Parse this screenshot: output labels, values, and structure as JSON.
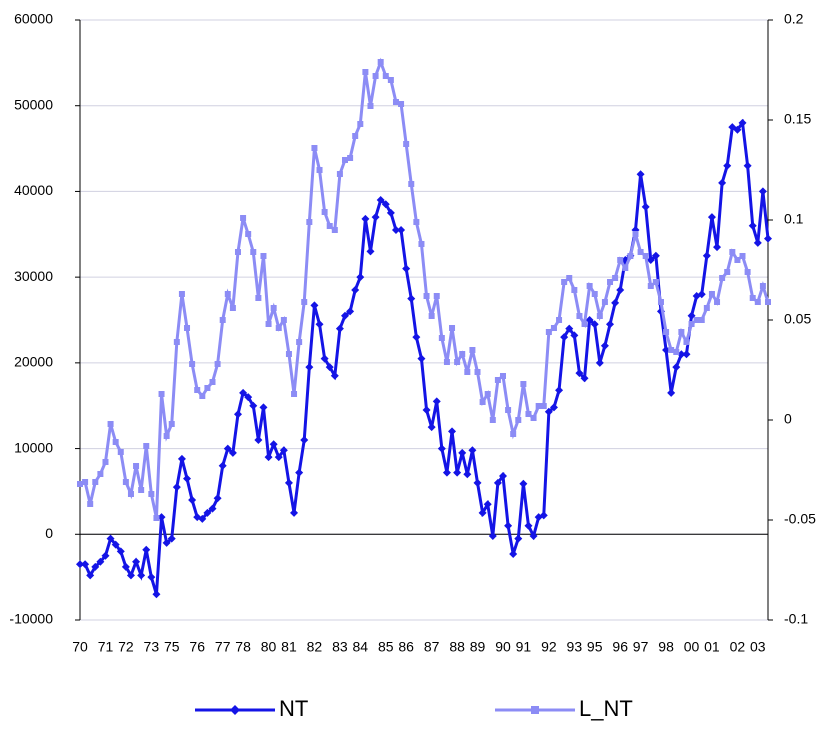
{
  "chart_data": {
    "type": "line",
    "categories": [
      "70",
      null,
      null,
      null,
      null,
      "71",
      null,
      null,
      null,
      "72",
      null,
      null,
      null,
      null,
      "73",
      null,
      null,
      null,
      "75",
      null,
      null,
      null,
      null,
      "76",
      null,
      null,
      null,
      null,
      "77",
      null,
      null,
      null,
      "78",
      null,
      null,
      null,
      null,
      "80",
      null,
      null,
      null,
      "81",
      null,
      null,
      null,
      null,
      "82",
      null,
      null,
      null,
      null,
      "83",
      null,
      null,
      null,
      "84",
      null,
      null,
      null,
      null,
      "85",
      null,
      null,
      null,
      "86",
      null,
      null,
      null,
      null,
      "87",
      null,
      null,
      null,
      null,
      "88",
      null,
      null,
      null,
      "89",
      null,
      null,
      null,
      null,
      "90",
      null,
      null,
      null,
      "91",
      null,
      null,
      null,
      null,
      "92",
      null,
      null,
      null,
      null,
      "93",
      null,
      null,
      null,
      "95",
      null,
      null,
      null,
      null,
      "96",
      null,
      null,
      null,
      "97",
      null,
      null,
      null,
      null,
      "98",
      null,
      null,
      null,
      null,
      "00",
      null,
      null,
      null,
      "01",
      null,
      null,
      null,
      null,
      "02",
      null,
      null,
      null,
      "03",
      null,
      null
    ],
    "series": [
      {
        "name": "NT",
        "color": "#1414e6",
        "marker": "diamond",
        "values": [
          -3500,
          -3500,
          -4800,
          -3800,
          -3200,
          -2500,
          -500,
          -1200,
          -2000,
          -3800,
          -4800,
          -3200,
          -4800,
          -1800,
          -5000,
          -7000,
          2000,
          -1000,
          -500,
          5500,
          8800,
          6500,
          4000,
          2000,
          1800,
          2500,
          3000,
          4200,
          8000,
          10000,
          9500,
          14000,
          16500,
          16000,
          15000,
          11000,
          14800,
          9000,
          10500,
          9000,
          9800,
          6000,
          2500,
          7200,
          11000,
          19500,
          26700,
          24500,
          20500,
          19500,
          18500,
          24000,
          25500,
          26000,
          28500,
          30000,
          36800,
          33000,
          37000,
          39000,
          38500,
          37500,
          35500,
          35500,
          31000,
          27500,
          23000,
          20500,
          14500,
          12500,
          15500,
          10000,
          7200,
          12000,
          7200,
          9500,
          7000,
          9800,
          6000,
          2500,
          3500,
          -200,
          6000,
          6800,
          1000,
          -2300,
          -500,
          5900,
          1000,
          -200,
          2000,
          2200,
          14300,
          14800,
          16800,
          23000,
          24000,
          23200,
          18800,
          18200,
          25000,
          24500,
          20000,
          22000,
          24500,
          27000,
          28500,
          32000,
          32500,
          35500,
          42000,
          38200,
          32000,
          32500,
          26000,
          21500,
          16500,
          19500,
          21000,
          21000,
          25500,
          27800,
          28000,
          32500,
          37000,
          33500,
          41000,
          43000,
          47500,
          47200,
          48000,
          43000,
          36000,
          34000,
          40000,
          34500
        ]
      },
      {
        "name": "L_NT",
        "color": "#8c8cf5",
        "marker": "square",
        "axis": "y2",
        "values": [
          -0.032,
          -0.031,
          -0.042,
          -0.031,
          -0.027,
          -0.021,
          -0.002,
          -0.011,
          -0.016,
          -0.031,
          -0.037,
          -0.023,
          -0.035,
          -0.013,
          -0.037,
          -0.049,
          0.013,
          -0.008,
          -0.002,
          0.039,
          0.063,
          0.046,
          0.028,
          0.015,
          0.012,
          0.016,
          0.019,
          0.028,
          0.05,
          0.063,
          0.056,
          0.084,
          0.101,
          0.093,
          0.084,
          0.061,
          0.082,
          0.048,
          0.056,
          0.046,
          0.05,
          0.033,
          0.013,
          0.039,
          0.059,
          0.099,
          0.136,
          0.125,
          0.104,
          0.097,
          0.095,
          0.123,
          0.13,
          0.131,
          0.142,
          0.148,
          0.174,
          0.157,
          0.172,
          0.179,
          0.172,
          0.17,
          0.159,
          0.158,
          0.138,
          0.118,
          0.099,
          0.088,
          0.062,
          0.052,
          0.062,
          0.041,
          0.029,
          0.046,
          0.029,
          0.033,
          0.024,
          0.035,
          0.024,
          0.009,
          0.013,
          0.0,
          0.02,
          0.022,
          0.005,
          -0.007,
          0.0,
          0.018,
          0.003,
          0.001,
          0.007,
          0.007,
          0.044,
          0.046,
          0.05,
          0.069,
          0.071,
          0.065,
          0.052,
          0.048,
          0.067,
          0.063,
          0.052,
          0.059,
          0.069,
          0.071,
          0.08,
          0.076,
          0.082,
          0.093,
          0.084,
          0.082,
          0.067,
          0.069,
          0.059,
          0.044,
          0.035,
          0.034,
          0.044,
          0.039,
          0.048,
          0.05,
          0.05,
          0.056,
          0.063,
          0.059,
          0.071,
          0.074,
          0.084,
          0.08,
          0.082,
          0.074,
          0.061,
          0.059,
          0.067,
          0.059
        ]
      }
    ],
    "ylim": [
      -10000,
      60000
    ],
    "yticks": [
      -10000,
      0,
      10000,
      20000,
      30000,
      40000,
      50000,
      60000
    ],
    "y2lim": [
      -0.1,
      0.2
    ],
    "y2ticks": [
      -0.1,
      -0.05,
      0,
      0.05,
      0.1,
      0.15,
      0.2
    ],
    "grid": true,
    "legend": "bottom"
  }
}
